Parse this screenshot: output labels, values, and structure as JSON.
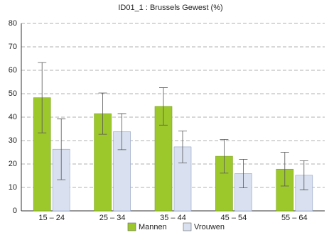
{
  "chart_data": {
    "type": "bar",
    "title": "ID01_1 : Brussels Gewest (%)",
    "categories": [
      "15 – 24",
      "25 – 34",
      "35 – 44",
      "45 – 54",
      "55 – 64"
    ],
    "series": [
      {
        "name": "Mannen",
        "color": "#9dc82c",
        "values": [
          48.3,
          41.5,
          44.6,
          23.3,
          17.8
        ],
        "errors": [
          15,
          8.8,
          8,
          7.2,
          7.2
        ]
      },
      {
        "name": "Vrouwen",
        "color": "#d9e1f0",
        "values": [
          26.3,
          33.8,
          27.3,
          15.9,
          15.2
        ],
        "errors": [
          13,
          7.7,
          6.8,
          6.1,
          6.2
        ]
      }
    ],
    "ylim": [
      0,
      80
    ],
    "yticks": [
      0,
      10,
      20,
      30,
      40,
      50,
      60,
      70,
      80
    ],
    "grid": true,
    "legend": "bottom"
  }
}
